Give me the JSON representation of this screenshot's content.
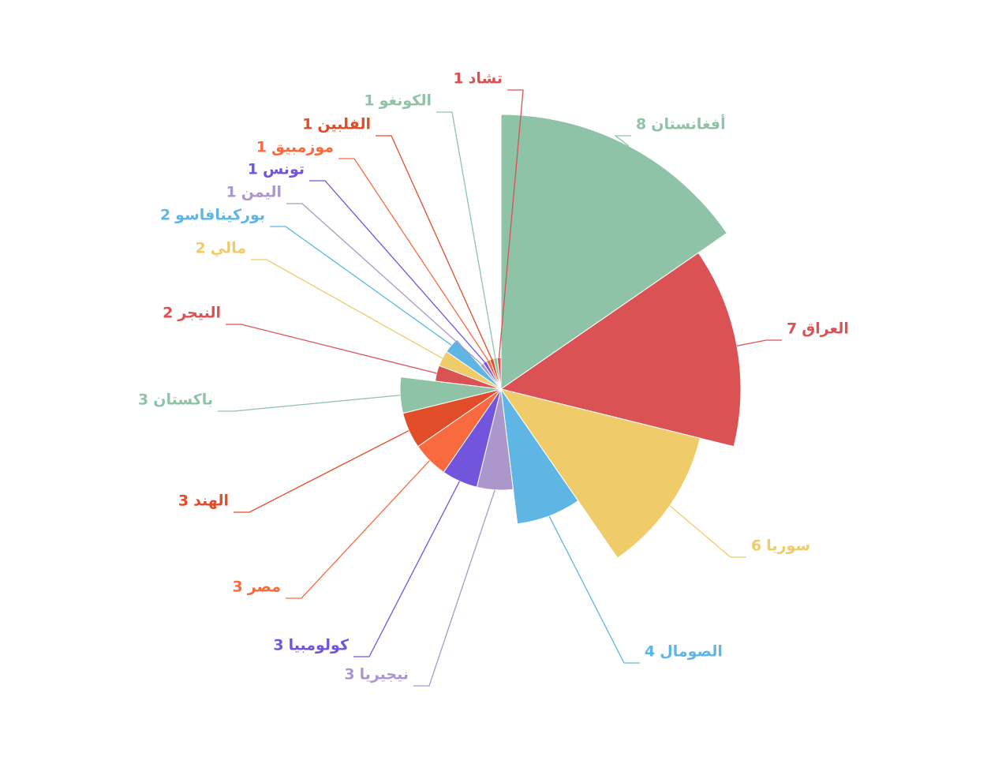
{
  "chart_data": {
    "type": "pie",
    "rose_type": "radius",
    "categories": [
      "أفغانستان",
      "العراق",
      "سوريا",
      "الصومال",
      "نيجيريا",
      "كولومبيا",
      "مصر",
      "الهند",
      "باكستان",
      "النيجر",
      "مالي",
      "بوركينافاسو",
      "اليمن",
      "تونس",
      "موزمبيق",
      "الفلبين",
      "الكونغو",
      "تشاد"
    ],
    "values": [
      8,
      7,
      6,
      4,
      3,
      3,
      3,
      3,
      3,
      2,
      2,
      2,
      1,
      1,
      1,
      1,
      1,
      1
    ],
    "colors": [
      "#8fc3a7",
      "#db5254",
      "#efcb6a",
      "#5fb6e4",
      "#ab97cb",
      "#7254dd",
      "#f96a3f",
      "#e14d28"
    ]
  }
}
